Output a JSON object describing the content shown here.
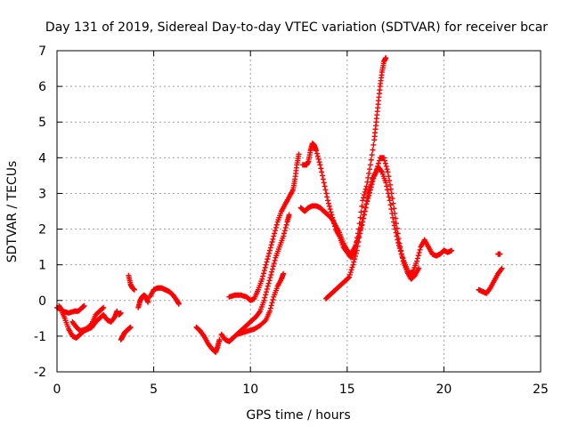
{
  "chart_data": {
    "type": "scatter",
    "title": "Day 131 of 2019, Sidereal Day-to-day VTEC variation (SDTVAR) for receiver bcar",
    "xlabel": "GPS time / hours",
    "ylabel": "SDTVAR / TECUs",
    "xlim": [
      0,
      25
    ],
    "ylim": [
      -2,
      7
    ],
    "xticks": [
      0,
      5,
      10,
      15,
      20,
      25
    ],
    "yticks": [
      -2,
      -1,
      0,
      1,
      2,
      3,
      4,
      5,
      6,
      7
    ],
    "grid": true,
    "marker": "+",
    "series": [
      {
        "name": "SDTVAR",
        "color": "#ff0000",
        "segments": [
          [
            [
              0.0,
              -0.2
            ],
            [
              0.2,
              -0.25
            ],
            [
              0.4,
              -0.5
            ],
            [
              0.6,
              -0.8
            ],
            [
              0.8,
              -1.0
            ],
            [
              1.0,
              -1.05
            ],
            [
              1.2,
              -0.95
            ],
            [
              1.4,
              -0.85
            ],
            [
              1.6,
              -0.8
            ],
            [
              1.8,
              -0.75
            ],
            [
              2.0,
              -0.6
            ],
            [
              2.2,
              -0.5
            ],
            [
              2.4,
              -0.4
            ],
            [
              2.6,
              -0.55
            ],
            [
              2.8,
              -0.6
            ],
            [
              3.0,
              -0.45
            ],
            [
              3.1,
              -0.3
            ]
          ],
          [
            [
              0.1,
              -0.15
            ],
            [
              0.3,
              -0.3
            ],
            [
              0.6,
              -0.35
            ],
            [
              0.9,
              -0.3
            ],
            [
              1.1,
              -0.3
            ],
            [
              1.3,
              -0.2
            ],
            [
              1.4,
              -0.15
            ]
          ],
          [
            [
              0.8,
              -0.6
            ],
            [
              1.0,
              -0.75
            ],
            [
              1.2,
              -0.85
            ],
            [
              1.5,
              -0.8
            ],
            [
              1.8,
              -0.65
            ],
            [
              2.0,
              -0.4
            ],
            [
              2.2,
              -0.3
            ],
            [
              2.4,
              -0.2
            ]
          ],
          [
            [
              3.2,
              -0.4
            ],
            [
              3.3,
              -0.35
            ]
          ],
          [
            [
              3.3,
              -1.1
            ],
            [
              3.4,
              -1.0
            ],
            [
              3.5,
              -0.9
            ],
            [
              3.6,
              -0.85
            ],
            [
              3.7,
              -0.8
            ],
            [
              3.8,
              -0.75
            ]
          ],
          [
            [
              3.7,
              0.7
            ],
            [
              3.8,
              0.45
            ],
            [
              3.9,
              0.35
            ],
            [
              4.0,
              0.3
            ]
          ],
          [
            [
              4.2,
              -0.2
            ],
            [
              4.3,
              0.0
            ],
            [
              4.4,
              0.1
            ],
            [
              4.5,
              0.15
            ],
            [
              4.6,
              0.1
            ],
            [
              4.7,
              -0.05
            ]
          ],
          [
            [
              4.8,
              0.1
            ],
            [
              5.0,
              0.3
            ],
            [
              5.2,
              0.35
            ],
            [
              5.4,
              0.35
            ],
            [
              5.6,
              0.3
            ],
            [
              5.8,
              0.25
            ],
            [
              6.0,
              0.15
            ],
            [
              6.2,
              0.0
            ],
            [
              6.3,
              -0.1
            ]
          ],
          [
            [
              7.2,
              -0.75
            ],
            [
              7.4,
              -0.85
            ],
            [
              7.6,
              -1.0
            ],
            [
              7.8,
              -1.2
            ],
            [
              8.0,
              -1.35
            ],
            [
              8.2,
              -1.45
            ],
            [
              8.3,
              -1.3
            ],
            [
              8.4,
              -1.1
            ]
          ],
          [
            [
              8.5,
              -0.95
            ],
            [
              8.7,
              -1.1
            ],
            [
              8.9,
              -1.15
            ],
            [
              9.1,
              -1.05
            ],
            [
              9.3,
              -0.95
            ],
            [
              9.5,
              -0.85
            ],
            [
              9.7,
              -0.75
            ],
            [
              9.9,
              -0.65
            ],
            [
              10.1,
              -0.55
            ],
            [
              10.3,
              -0.45
            ],
            [
              10.5,
              -0.3
            ],
            [
              10.7,
              0.0
            ],
            [
              10.9,
              0.4
            ],
            [
              11.1,
              0.8
            ],
            [
              11.3,
              1.2
            ],
            [
              11.5,
              1.5
            ],
            [
              11.7,
              1.8
            ],
            [
              11.9,
              2.2
            ],
            [
              12.0,
              2.4
            ]
          ],
          [
            [
              8.9,
              0.1
            ],
            [
              9.2,
              0.15
            ],
            [
              9.5,
              0.15
            ],
            [
              9.8,
              0.1
            ],
            [
              10.0,
              0.0
            ],
            [
              10.2,
              0.05
            ],
            [
              10.4,
              0.3
            ],
            [
              10.6,
              0.6
            ],
            [
              10.8,
              1.0
            ],
            [
              11.0,
              1.4
            ],
            [
              11.2,
              1.8
            ],
            [
              11.4,
              2.2
            ],
            [
              11.6,
              2.5
            ],
            [
              11.8,
              2.7
            ],
            [
              12.0,
              2.9
            ],
            [
              12.2,
              3.1
            ],
            [
              12.3,
              3.4
            ],
            [
              12.4,
              3.8
            ],
            [
              12.5,
              4.1
            ]
          ],
          [
            [
              9.3,
              -0.95
            ],
            [
              9.6,
              -0.9
            ],
            [
              9.9,
              -0.85
            ],
            [
              10.2,
              -0.8
            ],
            [
              10.5,
              -0.7
            ],
            [
              10.8,
              -0.55
            ],
            [
              11.0,
              -0.3
            ],
            [
              11.2,
              0.1
            ],
            [
              11.4,
              0.4
            ],
            [
              11.6,
              0.6
            ],
            [
              11.7,
              0.75
            ]
          ],
          [
            [
              12.6,
              2.6
            ],
            [
              12.8,
              2.5
            ],
            [
              12.9,
              2.55
            ],
            [
              13.0,
              2.6
            ],
            [
              13.2,
              2.65
            ],
            [
              13.4,
              2.65
            ],
            [
              13.6,
              2.6
            ],
            [
              13.8,
              2.5
            ],
            [
              14.0,
              2.4
            ],
            [
              14.2,
              2.3
            ],
            [
              14.4,
              2.1
            ],
            [
              14.6,
              1.9
            ],
            [
              14.8,
              1.6
            ],
            [
              15.0,
              1.4
            ],
            [
              15.2,
              1.3
            ],
            [
              15.4,
              1.5
            ],
            [
              15.6,
              1.8
            ],
            [
              15.8,
              2.2
            ],
            [
              16.0,
              2.7
            ],
            [
              16.2,
              3.1
            ],
            [
              16.4,
              3.5
            ],
            [
              16.6,
              3.75
            ],
            [
              16.8,
              3.6
            ],
            [
              17.0,
              3.3
            ],
            [
              17.2,
              2.8
            ],
            [
              17.4,
              2.2
            ],
            [
              17.6,
              1.7
            ],
            [
              17.8,
              1.3
            ],
            [
              18.0,
              1.0
            ],
            [
              18.2,
              0.75
            ],
            [
              18.4,
              0.8
            ],
            [
              18.6,
              1.1
            ],
            [
              18.8,
              1.5
            ],
            [
              19.0,
              1.7
            ],
            [
              19.2,
              1.5
            ],
            [
              19.4,
              1.3
            ],
            [
              19.6,
              1.25
            ],
            [
              19.8,
              1.3
            ],
            [
              20.0,
              1.4
            ],
            [
              20.2,
              1.35
            ],
            [
              20.4,
              1.4
            ]
          ],
          [
            [
              12.7,
              3.8
            ],
            [
              12.9,
              3.8
            ],
            [
              13.0,
              3.9
            ],
            [
              13.1,
              4.2
            ],
            [
              13.2,
              4.4
            ],
            [
              13.3,
              4.35
            ],
            [
              13.4,
              4.2
            ],
            [
              13.6,
              3.8
            ],
            [
              13.8,
              3.3
            ],
            [
              14.0,
              2.8
            ],
            [
              14.2,
              2.4
            ],
            [
              14.4,
              2.0
            ],
            [
              14.6,
              1.8
            ],
            [
              14.8,
              1.5
            ],
            [
              15.0,
              1.35
            ],
            [
              15.2,
              1.2
            ],
            [
              15.4,
              1.4
            ],
            [
              15.6,
              2.0
            ],
            [
              15.8,
              2.8
            ],
            [
              16.0,
              3.2
            ],
            [
              16.2,
              3.8
            ],
            [
              16.4,
              4.5
            ],
            [
              16.5,
              5.0
            ],
            [
              16.6,
              5.5
            ],
            [
              16.7,
              6.0
            ],
            [
              16.8,
              6.4
            ],
            [
              16.9,
              6.7
            ],
            [
              17.0,
              6.8
            ]
          ],
          [
            [
              13.9,
              0.05
            ],
            [
              14.1,
              0.15
            ],
            [
              14.3,
              0.25
            ],
            [
              14.5,
              0.35
            ],
            [
              14.7,
              0.45
            ],
            [
              14.9,
              0.55
            ],
            [
              15.1,
              0.65
            ],
            [
              15.3,
              1.0
            ],
            [
              15.5,
              1.4
            ],
            [
              15.7,
              2.0
            ],
            [
              15.9,
              2.5
            ],
            [
              16.1,
              3.0
            ],
            [
              16.3,
              3.4
            ],
            [
              16.5,
              3.6
            ],
            [
              16.7,
              4.0
            ],
            [
              16.9,
              4.0
            ],
            [
              17.1,
              3.6
            ],
            [
              17.3,
              3.0
            ],
            [
              17.5,
              2.3
            ],
            [
              17.7,
              1.6
            ],
            [
              17.9,
              1.1
            ],
            [
              18.1,
              0.8
            ],
            [
              18.3,
              0.6
            ],
            [
              18.5,
              0.7
            ],
            [
              18.7,
              0.9
            ]
          ],
          [
            [
              21.8,
              0.3
            ],
            [
              22.0,
              0.25
            ],
            [
              22.2,
              0.2
            ],
            [
              22.4,
              0.35
            ],
            [
              22.6,
              0.55
            ],
            [
              22.8,
              0.75
            ],
            [
              23.0,
              0.9
            ]
          ],
          [
            [
              22.8,
              1.3
            ],
            [
              22.9,
              1.3
            ]
          ]
        ]
      }
    ]
  }
}
